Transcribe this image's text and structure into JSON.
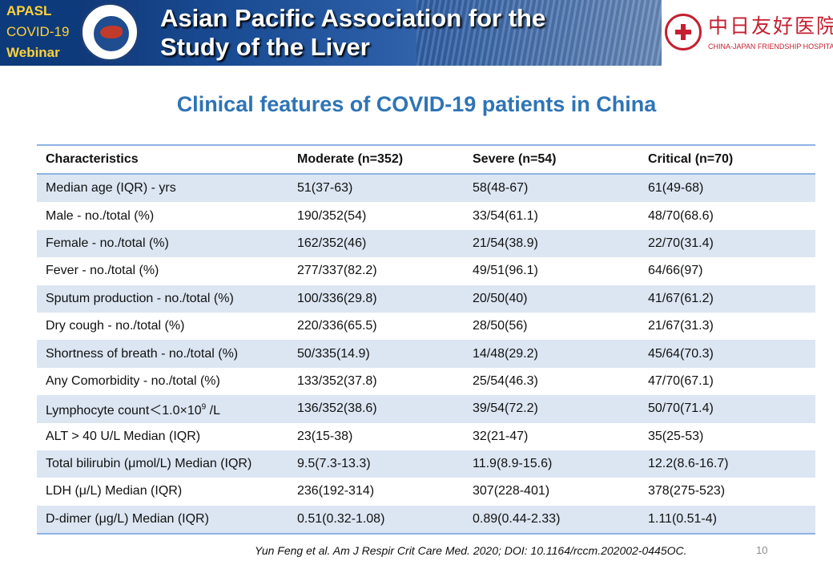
{
  "banner": {
    "apasl": "APASL",
    "covid": "COVID-19",
    "webinar": "Webinar",
    "seal_text": "Asian Pacific Association for the Study of the Liver",
    "title_line1": "Asian Pacific Association for the",
    "title_line2": "Study of the Liver"
  },
  "hospital": {
    "name_cn": "中日友好医院",
    "name_en": "CHINA-JAPAN FRIENDSHIP HOSPITAL"
  },
  "slide": {
    "title": "Clinical features of COVID-19 patients in China"
  },
  "table": {
    "headers": [
      "Characteristics",
      "Moderate (n=352)",
      "Severe (n=54)",
      "Critical (n=70)"
    ],
    "rows": [
      [
        "Median age (IQR) - yrs",
        "51(37-63)",
        "58(48-67)",
        "61(49-68)"
      ],
      [
        "Male - no./total (%)",
        "190/352(54)",
        "33/54(61.1)",
        "48/70(68.6)"
      ],
      [
        "Female - no./total (%)",
        "162/352(46)",
        "21/54(38.9)",
        "22/70(31.4)"
      ],
      [
        "Fever - no./total (%)",
        "277/337(82.2)",
        "49/51(96.1)",
        "64/66(97)"
      ],
      [
        "Sputum production - no./total (%)",
        "100/336(29.8)",
        "20/50(40)",
        "41/67(61.2)"
      ],
      [
        "Dry cough - no./total (%)",
        "220/336(65.5)",
        "28/50(56)",
        "21/67(31.3)"
      ],
      [
        "Shortness of breath - no./total (%)",
        "50/335(14.9)",
        "14/48(29.2)",
        "45/64(70.3)"
      ],
      [
        "Any Comorbidity - no./total (%)",
        "133/352(37.8)",
        "25/54(46.3)",
        "47/70(67.1)"
      ],
      [
        "Lymphocyte count＜1.0×10",
        "136/352(38.6)",
        "39/54(72.2)",
        "50/70(71.4)"
      ],
      [
        "ALT >  40 U/L Median (IQR)",
        "23(15-38)",
        "32(21-47)",
        "35(25-53)"
      ],
      [
        "Total bilirubin (μmol/L) Median (IQR)",
        "9.5(7.3-13.3)",
        "11.9(8.9-15.6)",
        "12.2(8.6-16.7)"
      ],
      [
        "LDH  (μ/L) Median (IQR)",
        "236(192-314)",
        "307(228-401)",
        "378(275-523)"
      ],
      [
        "D-dimer (μg/L) Median (IQR)",
        "0.51(0.32-1.08)",
        "0.89(0.44-2.33)",
        "1.11(0.51-4)"
      ]
    ],
    "lymphocyte_exponent": "9",
    "lymphocyte_unit": " /L"
  },
  "footer": {
    "citation": "Yun Feng et al. Am J Respir Crit Care Med. 2020; DOI: 10.1164/rccm.202002-0445OC.",
    "page_number": "10"
  },
  "colors": {
    "title": "#2e74b5",
    "row_band": "#dce6f2",
    "rule": "#8eb4e3",
    "hospital_red": "#c42030",
    "banner_blue": "#1a4c94",
    "banner_yellow": "#ffd23a"
  }
}
